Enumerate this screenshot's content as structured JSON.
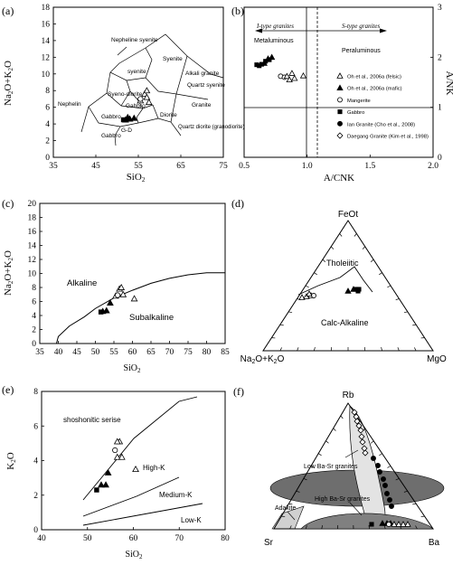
{
  "chart_data": [
    {
      "panel": "(a)",
      "type": "scatter",
      "xlabel": "SiO2",
      "ylabel": "Na2O+K2O",
      "xlim": [
        35,
        75
      ],
      "ylim": [
        0,
        18
      ],
      "xticks": [
        35,
        45,
        55,
        65,
        75
      ],
      "yticks": [
        0,
        2,
        4,
        6,
        8,
        10,
        12,
        14,
        16,
        18
      ],
      "field_labels": [
        "Nepheline syenite",
        "Syenite",
        "syenite",
        "Alkali granite",
        "Quartz syenite",
        "Syeno-diorite",
        "Gabbro",
        "Nephelin",
        "Granite",
        "Diorite",
        "Gabbro",
        "Quartz diorite (granodiorite)",
        "G-D",
        "Gabbro"
      ],
      "series": [
        {
          "marker": "triangle-open",
          "points": [
            [
              55.5,
              6.8
            ],
            [
              56.5,
              7.6
            ],
            [
              57,
              7.2
            ],
            [
              57.5,
              6.6
            ],
            [
              57,
              8.0
            ]
          ]
        },
        {
          "marker": "circle-open",
          "points": [
            [
              55.5,
              7.0
            ]
          ]
        },
        {
          "marker": "triangle-filled",
          "points": [
            [
              52.5,
              4.8
            ],
            [
              53,
              4.6
            ],
            [
              54,
              4.7
            ],
            [
              52,
              4.5
            ]
          ]
        },
        {
          "marker": "square-filled",
          "points": [
            [
              51.5,
              4.5
            ]
          ]
        }
      ]
    },
    {
      "panel": "(b)",
      "type": "scatter",
      "xlabel": "A/CNK",
      "ylabel": "A/NK",
      "xlim": [
        0.5,
        2.0
      ],
      "ylim": [
        0,
        3
      ],
      "xticks": [
        0.5,
        1.0,
        1.5,
        2.0
      ],
      "yticks": [
        0,
        1,
        2,
        3
      ],
      "annotations": [
        "I-type granites",
        "S-type granites",
        "Metaluminous",
        "Peraluminous"
      ],
      "legend": [
        {
          "marker": "triangle-open",
          "label": "Oh et al., 2006a (felsic)"
        },
        {
          "marker": "triangle-filled",
          "label": "Oh et al., 2006a (mafic)"
        },
        {
          "marker": "circle-open",
          "label": "Mangerite"
        },
        {
          "marker": "square-filled",
          "label": "Gabbro"
        },
        {
          "marker": "circle-filled",
          "label": "Ian Granite (Cho et al., 2008)"
        },
        {
          "marker": "diamond-open",
          "label": "Daegang Granite (Kim et al., 1998)"
        }
      ],
      "series": [
        {
          "marker": "square-filled",
          "points": [
            [
              0.6,
              1.85
            ],
            [
              0.62,
              1.83
            ],
            [
              0.64,
              1.86
            ],
            [
              0.67,
              1.92
            ],
            [
              0.7,
              1.95
            ]
          ]
        },
        {
          "marker": "triangle-filled",
          "points": [
            [
              0.66,
              1.88
            ],
            [
              0.69,
              1.97
            ],
            [
              0.72,
              2.0
            ]
          ]
        },
        {
          "marker": "circle-open",
          "points": [
            [
              0.79,
              1.62
            ],
            [
              0.82,
              1.6
            ]
          ]
        },
        {
          "marker": "triangle-open",
          "points": [
            [
              0.84,
              1.62
            ],
            [
              0.86,
              1.55
            ],
            [
              0.9,
              1.58
            ],
            [
              0.97,
              1.63
            ],
            [
              0.88,
              1.68
            ]
          ]
        }
      ]
    },
    {
      "panel": "(c)",
      "type": "scatter",
      "xlabel": "SiO2",
      "ylabel": "Na2O+K2O",
      "xlim": [
        35,
        85
      ],
      "ylim": [
        0,
        20
      ],
      "xticks": [
        35,
        40,
        45,
        50,
        55,
        60,
        65,
        70,
        75,
        80,
        85
      ],
      "yticks": [
        0,
        2,
        4,
        6,
        8,
        10,
        12,
        14,
        16,
        18,
        20
      ],
      "field_labels": [
        "Alkaline",
        "Subalkaline"
      ],
      "boundary": [
        [
          39.5,
          0
        ],
        [
          40,
          1
        ],
        [
          43,
          2.5
        ],
        [
          47,
          3.8
        ],
        [
          50,
          5
        ],
        [
          55,
          6.5
        ],
        [
          60,
          7.6
        ],
        [
          65,
          8.6
        ],
        [
          70,
          9.3
        ],
        [
          75,
          9.8
        ],
        [
          80,
          10.1
        ],
        [
          85,
          10.1
        ]
      ],
      "series": [
        {
          "marker": "square-filled",
          "points": [
            [
              51.5,
              4.5
            ]
          ]
        },
        {
          "marker": "triangle-filled",
          "points": [
            [
              52,
              4.6
            ],
            [
              53,
              4.7
            ],
            [
              54,
              5.8
            ]
          ]
        },
        {
          "marker": "triangle-open",
          "points": [
            [
              55.5,
              6.8
            ],
            [
              56.5,
              7.8
            ],
            [
              57,
              8.0
            ],
            [
              57.5,
              7.0
            ],
            [
              60.5,
              6.4
            ]
          ]
        },
        {
          "marker": "circle-open",
          "points": [
            [
              56,
              6.9
            ]
          ]
        }
      ]
    },
    {
      "panel": "(d)",
      "type": "ternary",
      "apices": [
        "FeOt",
        "Na2O+K2O",
        "MgO"
      ],
      "field_labels": [
        "Tholeiitic",
        "Calc-Alkaline"
      ]
    },
    {
      "panel": "(e)",
      "type": "scatter",
      "xlabel": "SiO2",
      "ylabel": "K2O",
      "xlim": [
        40,
        80
      ],
      "ylim": [
        0,
        8
      ],
      "xticks": [
        40,
        50,
        60,
        70,
        80
      ],
      "yticks": [
        0,
        2,
        4,
        6,
        8
      ],
      "field_labels": [
        "shoshonitic serise",
        "High-K",
        "Medium-K",
        "Low-K"
      ],
      "series": [
        {
          "marker": "square-filled",
          "points": [
            [
              52,
              2.3
            ]
          ]
        },
        {
          "marker": "triangle-filled",
          "points": [
            [
              53,
              2.6
            ],
            [
              54,
              2.6
            ],
            [
              54.5,
              3.3
            ]
          ]
        },
        {
          "marker": "triangle-open",
          "points": [
            [
              56.5,
              4.2
            ],
            [
              57.5,
              4.2
            ],
            [
              57,
              5.1
            ],
            [
              56.5,
              5.1
            ],
            [
              60.5,
              3.5
            ]
          ]
        },
        {
          "marker": "circle-open",
          "points": [
            [
              56,
              4.6
            ]
          ]
        }
      ]
    },
    {
      "panel": "(f)",
      "type": "ternary",
      "apices": [
        "Rb",
        "Sr",
        "Ba"
      ],
      "field_labels": [
        "Low Ba-Sr granites",
        "High Ba-Sr granites",
        "Adakite"
      ]
    }
  ],
  "panels": {
    "a": {
      "letter": "(a)"
    },
    "b": {
      "letter": "(b)"
    },
    "c": {
      "letter": "(c)"
    },
    "d": {
      "letter": "(d)"
    },
    "e": {
      "letter": "(e)"
    },
    "f": {
      "letter": "(f)"
    }
  },
  "colors": {
    "ink": "#000000",
    "field_gray": "#d9d9d9",
    "dark_field": "#808080"
  }
}
